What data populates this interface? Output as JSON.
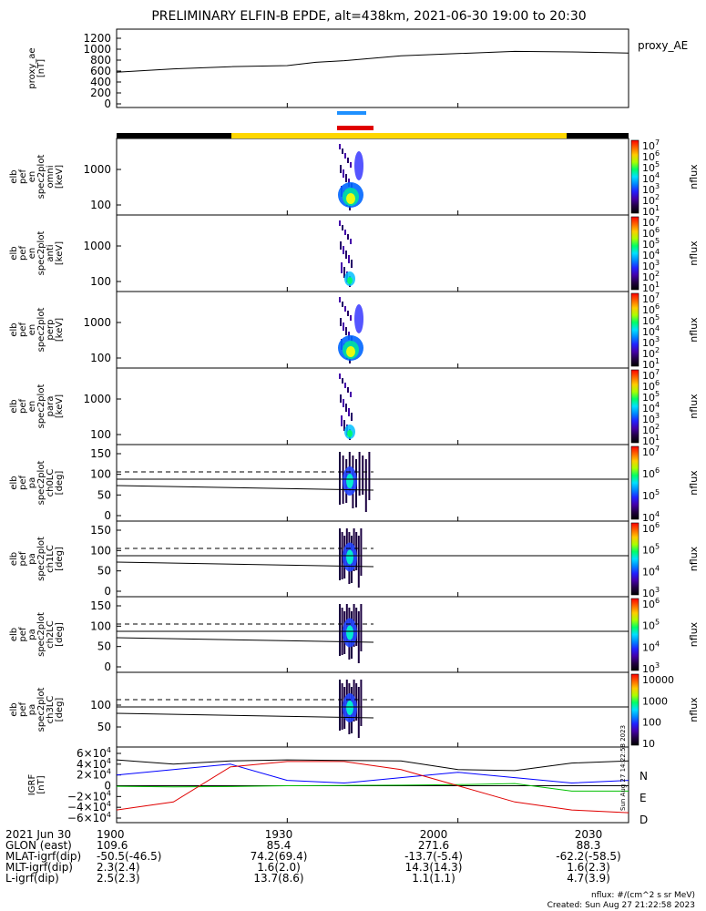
{
  "title": "PRELIMINARY ELFIN-B EPDE, alt=438km, 2021-06-30 19:00 to 20:30",
  "colors": {
    "line": "#000000",
    "science_zone_blue": "#1e90ff",
    "science_zone_red": "#e00000",
    "status_black": "#000000",
    "status_yellow": "#ffd700",
    "grf_N": "#0000ff",
    "grf_E": "#00c000",
    "grf_D": "#e00000"
  },
  "panels": [
    {
      "id": "proxy_ae",
      "ylabel": [
        "proxy_ae",
        "[nT]"
      ],
      "yticks": [
        "1200",
        "1000",
        "800",
        "600",
        "400",
        "200",
        "0"
      ],
      "right_label": "proxy_AE"
    },
    {
      "id": "en_omni",
      "ylabel": [
        "elb",
        "pef",
        "en",
        "spec2plot",
        "omni",
        "[keV]"
      ],
      "yticks": [
        "1000",
        "100"
      ],
      "cbar_ticks": [
        "10",
        "10",
        "10",
        "10",
        "10",
        "10",
        "10"
      ],
      "cbar_exps": [
        "7",
        "6",
        "5",
        "4",
        "3",
        "2",
        "1"
      ],
      "cbar_label": "nflux"
    },
    {
      "id": "en_anti",
      "ylabel": [
        "elb",
        "pef",
        "en",
        "spec2plot",
        "anti",
        "[keV]"
      ],
      "yticks": [
        "1000",
        "100"
      ],
      "cbar_ticks": [
        "10",
        "10",
        "10",
        "10",
        "10",
        "10",
        "10"
      ],
      "cbar_exps": [
        "7",
        "6",
        "5",
        "4",
        "3",
        "2",
        "1"
      ],
      "cbar_label": "nflux"
    },
    {
      "id": "en_perp",
      "ylabel": [
        "elb",
        "pef",
        "en",
        "spec2plot",
        "perp",
        "[keV]"
      ],
      "yticks": [
        "1000",
        "100"
      ],
      "cbar_ticks": [
        "10",
        "10",
        "10",
        "10",
        "10",
        "10",
        "10"
      ],
      "cbar_exps": [
        "7",
        "6",
        "5",
        "4",
        "3",
        "2",
        "1"
      ],
      "cbar_label": "nflux"
    },
    {
      "id": "en_para",
      "ylabel": [
        "elb",
        "pef",
        "en",
        "spec2plot",
        "para",
        "[keV]"
      ],
      "yticks": [
        "1000",
        "100"
      ],
      "cbar_ticks": [
        "10",
        "10",
        "10",
        "10",
        "10",
        "10",
        "10"
      ],
      "cbar_exps": [
        "7",
        "6",
        "5",
        "4",
        "3",
        "2",
        "1"
      ],
      "cbar_label": "nflux"
    },
    {
      "id": "pa_ch0",
      "ylabel": [
        "elb",
        "pef",
        "pa",
        "spec2plot",
        "ch0LC",
        "[deg]"
      ],
      "yticks": [
        "150",
        "100",
        "50",
        "0"
      ],
      "cbar_ticks": [
        "10",
        "10",
        "10",
        "10"
      ],
      "cbar_exps": [
        "7",
        "6",
        "5",
        "4"
      ],
      "cbar_label": "nflux"
    },
    {
      "id": "pa_ch1",
      "ylabel": [
        "elb",
        "pef",
        "pa",
        "spec2plot",
        "ch1LC",
        "[deg]"
      ],
      "yticks": [
        "150",
        "100",
        "50",
        "0"
      ],
      "cbar_ticks": [
        "10",
        "10",
        "10",
        "10"
      ],
      "cbar_exps": [
        "6",
        "5",
        "4",
        "3"
      ],
      "cbar_label": "nflux"
    },
    {
      "id": "pa_ch2",
      "ylabel": [
        "elb",
        "pef",
        "pa",
        "spec2plot",
        "ch2LC",
        "[deg]"
      ],
      "yticks": [
        "150",
        "100",
        "50",
        "0"
      ],
      "cbar_ticks": [
        "10",
        "10",
        "10",
        "10"
      ],
      "cbar_exps": [
        "6",
        "5",
        "4",
        "3"
      ],
      "cbar_label": "nflux"
    },
    {
      "id": "pa_ch3",
      "ylabel": [
        "elb",
        "pef",
        "pa",
        "spec2plot",
        "ch3LC",
        "[deg]"
      ],
      "yticks": [
        "100",
        "50"
      ],
      "cbar_ticks": [
        "10000",
        "1000",
        "100",
        "10"
      ],
      "cbar_exps": [
        "",
        "",
        "",
        ""
      ],
      "cbar_label": "nflux"
    },
    {
      "id": "igrf",
      "ylabel": [
        "IGRF",
        "[nT]"
      ],
      "yticks": [
        "6×10",
        "4×10",
        "2×10",
        "0",
        "−2×10",
        "−4×10",
        "−6×10"
      ],
      "ytick_exps": [
        "4",
        "4",
        "4",
        "",
        "4",
        "4",
        "4"
      ],
      "legend": [
        "N",
        "E",
        "D"
      ]
    }
  ],
  "chart_data": {
    "type": "line",
    "title": "PRELIMINARY ELFIN-B EPDE, alt=438km, 2021-06-30 19:00 to 20:30",
    "x_ticks": [
      "1900",
      "1930",
      "2000",
      "2030"
    ],
    "series": [
      {
        "name": "proxy_AE",
        "x": [
          "19:00",
          "19:10",
          "19:20",
          "19:30",
          "19:35",
          "19:40",
          "19:50",
          "20:00",
          "20:10",
          "20:20",
          "20:30"
        ],
        "values": [
          580,
          640,
          680,
          700,
          760,
          790,
          880,
          920,
          960,
          950,
          930
        ]
      },
      {
        "name": "N",
        "x": [
          "19:00",
          "19:10",
          "19:20",
          "19:30",
          "19:40",
          "19:50",
          "20:00",
          "20:10",
          "20:20",
          "20:30"
        ],
        "values": [
          20000,
          30000,
          40000,
          10000,
          5000,
          15000,
          25000,
          15000,
          5000,
          10000
        ]
      },
      {
        "name": "E",
        "x": [
          "19:00",
          "19:10",
          "19:20",
          "19:30",
          "19:40",
          "19:50",
          "20:00",
          "20:10",
          "20:20",
          "20:30"
        ],
        "values": [
          -1000,
          -2000,
          -1500,
          0,
          500,
          1000,
          2000,
          4000,
          -10000,
          -10000
        ]
      },
      {
        "name": "D",
        "x": [
          "19:00",
          "19:10",
          "19:20",
          "19:30",
          "19:40",
          "19:50",
          "20:00",
          "20:10",
          "20:20",
          "20:30"
        ],
        "values": [
          -45000,
          -30000,
          35000,
          45000,
          45000,
          30000,
          0,
          -30000,
          -45000,
          -50000
        ]
      }
    ],
    "ylim_ae": [
      0,
      1300
    ],
    "ylim_igrf": [
      -60000,
      60000
    ]
  },
  "footer": {
    "rows": [
      [
        "2021 Jun 30",
        "1900",
        "1930",
        "2000",
        "2030"
      ],
      [
        "GLON (east)",
        "109.6",
        "85.4",
        "271.6",
        "88.3"
      ],
      [
        "MLAT-igrf(dip)",
        "-50.5(-46.5)",
        "74.2(69.4)",
        "-13.7(-5.4)",
        "-62.2(-58.5)"
      ],
      [
        "MLT-igrf(dip)",
        "2.3(2.4)",
        "1.6(2.0)",
        "14.3(14.3)",
        "1.6(2.3)"
      ],
      [
        "L-igrf(dip)",
        "2.5(2.3)",
        "13.7(8.6)",
        "1.1(1.1)",
        "4.7(3.9)"
      ]
    ],
    "units_note": "nflux: #/(cm^2 s sr MeV)",
    "created": "Created: Sun Aug 27 21:22:58 2023",
    "created_side": "Sun Aug 27 14:22:58 2023"
  }
}
